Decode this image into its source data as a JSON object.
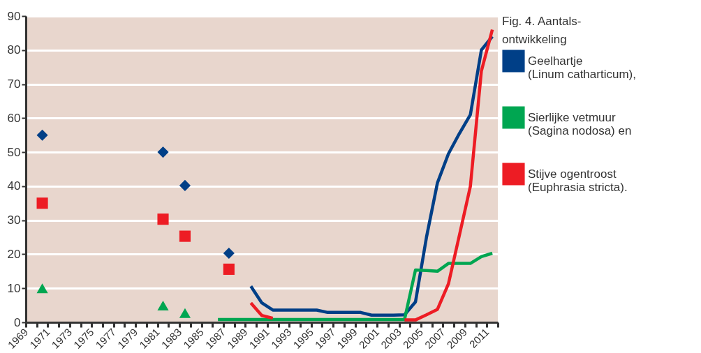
{
  "chart_data": {
    "type": "line",
    "legend_title": "Fig. 4. Aantals-ontwikkeling",
    "xlim": [
      1969,
      2012
    ],
    "xticks": [
      1969,
      {
        "value": 1970,
        "label": null
      },
      1971,
      {
        "value": 1972,
        "label": null
      },
      1973,
      {
        "value": 1974,
        "label": null
      },
      1975,
      {
        "value": 1976,
        "label": null
      },
      1977,
      {
        "value": 1978,
        "label": null
      },
      1979,
      {
        "value": 1980,
        "label": null
      },
      1981,
      {
        "value": 1982,
        "label": null
      },
      1983,
      {
        "value": 1984,
        "label": null
      },
      1985,
      {
        "value": 1986,
        "label": null
      },
      1987,
      {
        "value": 1988,
        "label": null
      },
      1989,
      {
        "value": 1990,
        "label": null
      },
      1991,
      {
        "value": 1992,
        "label": null
      },
      1993,
      {
        "value": 1994,
        "label": null
      },
      1995,
      {
        "value": 1996,
        "label": null
      },
      1997,
      {
        "value": 1998,
        "label": null
      },
      1999,
      {
        "value": 2000,
        "label": null
      },
      2001,
      {
        "value": 2002,
        "label": null
      },
      2003,
      {
        "value": 2004,
        "label": null
      },
      2005,
      {
        "value": 2006,
        "label": null
      },
      2007,
      {
        "value": 2008,
        "label": null
      },
      2009,
      {
        "value": 2010,
        "label": null
      },
      2011,
      {
        "value": 2012,
        "label": null
      }
    ],
    "ylim": [
      0,
      90
    ],
    "yticks": [
      0,
      10,
      20,
      30,
      40,
      50,
      60,
      70,
      80,
      90
    ],
    "grid": "y",
    "legend": "right",
    "line_style": "solid",
    "series": [
      {
        "name": "Geelhartje (Linum catharticum),",
        "color": "#003f87",
        "marker": "none",
        "x": [
          1989.5,
          1990.5,
          1991.5,
          1992.5,
          1993.5,
          1994.5,
          1995.5,
          1996.5,
          1997.5,
          1998.5,
          1999.5,
          2000.5,
          2001.5,
          2002.5,
          2003.5,
          2004.5,
          2005.5,
          2006.5,
          2007.5,
          2008.5,
          2009.5,
          2010.5,
          2011.5
        ],
        "values": [
          10.6,
          5.7,
          3.6,
          3.6,
          3.6,
          3.6,
          3.6,
          2.9,
          2.9,
          2.9,
          2.9,
          2.1,
          2.1,
          2.1,
          2.2,
          6,
          25,
          41,
          49.5,
          55.5,
          61,
          80,
          84
        ]
      },
      {
        "name": "Sierlijke vetmuur (Sagina nodosa) en",
        "color": "#00a651",
        "marker": "none",
        "x": [
          1986.5,
          1987.5,
          1988.5,
          1989.5,
          1990.5,
          1991.5,
          1992.5,
          1993.5,
          1994.5,
          1995.5,
          1996.5,
          1997.5,
          1998.5,
          1999.5,
          2000.5,
          2001.5,
          2002.5,
          2003.5,
          2004.5,
          2005.5,
          2006.5,
          2007.5,
          2008.5,
          2009.5,
          2010.5,
          2011.5
        ],
        "values": [
          0.8,
          0.8,
          0.8,
          0.8,
          0.8,
          0.8,
          0.8,
          0.8,
          0.8,
          0.8,
          0.8,
          0.8,
          0.8,
          0.8,
          0.8,
          0.8,
          0.8,
          0.8,
          15.4,
          15.2,
          15,
          17.3,
          17.3,
          17.3,
          19.3,
          20.3
        ]
      },
      {
        "name": "Stijve ogentroost (Euphrasia stricta).",
        "color": "#ed1c24",
        "marker": "none",
        "x": [
          1989.5,
          1990.5,
          1991.5,
          1992.5,
          2002.5,
          2003.5,
          2004.5,
          2005.5,
          2006.5,
          2007.5,
          2008.5,
          2009.5,
          2010.5,
          2011.5
        ],
        "values": [
          5.7,
          2,
          1.2,
          null,
          null,
          0.7,
          0.7,
          2.2,
          3.8,
          11.3,
          25.6,
          40,
          73.8,
          86
        ]
      },
      {
        "color": "#003f87",
        "type": "scatter",
        "marker": "diamond",
        "x": [
          1970.5,
          1981.5,
          1983.5,
          1987.5
        ],
        "values": [
          55,
          50,
          40.2,
          20.3
        ]
      },
      {
        "color": "#ed1c24",
        "type": "scatter",
        "marker": "square",
        "x": [
          1970.5,
          1981.5,
          1983.5,
          1987.5
        ],
        "values": [
          35,
          30.3,
          25.3,
          15.6
        ]
      },
      {
        "color": "#00a651",
        "type": "scatter",
        "marker": "triangle",
        "x": [
          1970.5,
          1981.5,
          1983.5
        ],
        "values": [
          10,
          4.9,
          2.7
        ]
      }
    ]
  }
}
